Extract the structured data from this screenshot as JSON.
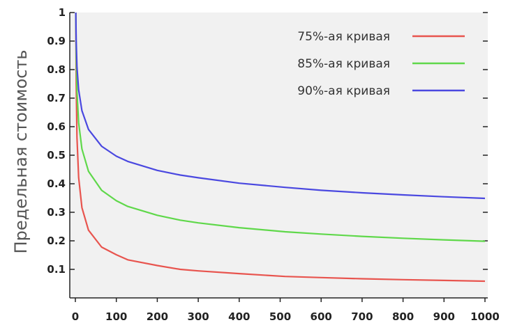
{
  "chart_data": {
    "type": "line",
    "title": "",
    "xlabel": "",
    "ylabel": "Предельная стоимость",
    "xlim": [
      0,
      1000
    ],
    "ylim": [
      0,
      1
    ],
    "x_ticks": [
      "0",
      "100",
      "200",
      "300",
      "400",
      "500",
      "600",
      "700",
      "800",
      "900",
      "1000"
    ],
    "y_ticks": [
      "0.1",
      "0.2",
      "0.3",
      "0.4",
      "0.5",
      "0.6",
      "0.7",
      "0.8",
      "0.9",
      "1"
    ],
    "grid": false,
    "legend_position": "top-right",
    "series": [
      {
        "name": "75%-ая кривая",
        "color": "#e8544e",
        "x": [
          1,
          2,
          4,
          8,
          16,
          32,
          64,
          100,
          128,
          200,
          256,
          300,
          400,
          512,
          600,
          700,
          800,
          900,
          1000
        ],
        "y": [
          1,
          0.75,
          0.5625,
          0.4219,
          0.3164,
          0.2373,
          0.178,
          0.1513,
          0.1335,
          0.1134,
          0.1001,
          0.0946,
          0.0851,
          0.0751,
          0.0711,
          0.0671,
          0.0639,
          0.0611,
          0.0586
        ]
      },
      {
        "name": "85%-ая кривая",
        "color": "#5fd84a",
        "x": [
          1,
          2,
          4,
          8,
          16,
          32,
          64,
          100,
          128,
          200,
          256,
          300,
          400,
          512,
          600,
          700,
          800,
          900,
          1000
        ],
        "y": [
          1,
          0.85,
          0.7225,
          0.6141,
          0.522,
          0.4437,
          0.3771,
          0.3406,
          0.3206,
          0.2895,
          0.2725,
          0.2629,
          0.2461,
          0.2316,
          0.2236,
          0.2157,
          0.2091,
          0.2034,
          0.1985
        ]
      },
      {
        "name": "90%-ая кривая",
        "color": "#4a48e0",
        "x": [
          1,
          2,
          4,
          8,
          16,
          32,
          64,
          100,
          128,
          200,
          256,
          300,
          400,
          512,
          600,
          700,
          800,
          900,
          1000
        ],
        "y": [
          1,
          0.9,
          0.81,
          0.729,
          0.6561,
          0.5905,
          0.5314,
          0.4966,
          0.4783,
          0.4469,
          0.4305,
          0.421,
          0.4019,
          0.3874,
          0.3771,
          0.3684,
          0.361,
          0.3545,
          0.3487
        ]
      }
    ]
  }
}
